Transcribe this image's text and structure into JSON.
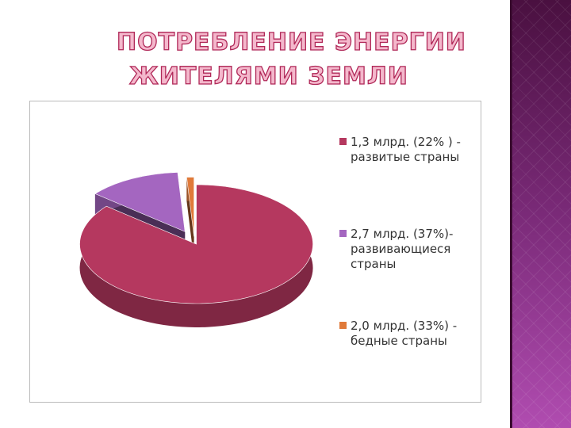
{
  "title": [
    "ПОТРЕБЛЕНИЕ ЭНЕРГИИ",
    "ЖИТЕЛЯМИ ЗЕМЛИ"
  ],
  "chart_data": {
    "type": "pie",
    "categories": [
      "1,3 млрд. (22% ) - развитые страны",
      "2,7 млрд. (37%)- развивающиеся страны",
      "2,0 млрд. (33%) - бедные страны"
    ],
    "values": [
      86,
      13,
      1
    ],
    "colors": [
      "#b5385f",
      "#a466c0",
      "#e07a3a"
    ],
    "legend": "right"
  }
}
